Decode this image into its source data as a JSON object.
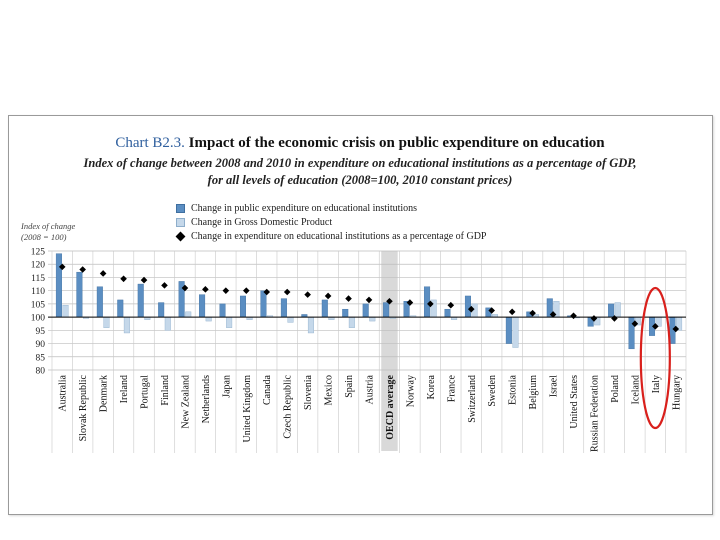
{
  "header": {
    "chart_number": "Chart B2.3.",
    "title": "Impact of the economic crisis on public expenditure on education",
    "subtitle_line1": "Index of change between 2008 and 2010 in expenditure on educational institutions as a percentage of GDP,",
    "subtitle_line2": "for all levels of education (2008=100, 2010 constant prices)"
  },
  "legend": {
    "dark": "Change in public expenditure on educational institutions",
    "light": "Change in Gross Domestic Product",
    "diamond": "Change in expenditure on educational institutions as a percentage of GDP"
  },
  "yaxis_unit": {
    "line1": "Index of change",
    "line2": "(2008 = 100)"
  },
  "colors": {
    "dark_bar": "#5b8ec2",
    "light_bar": "#c5d8ea",
    "diamond": "#000000",
    "highlight_band": "#d9d9d9",
    "highlight_circle": "#d9201c"
  },
  "chart_data": {
    "type": "bar",
    "ylim": [
      80,
      125
    ],
    "yticks": [
      80,
      85,
      90,
      95,
      100,
      105,
      110,
      115,
      120,
      125
    ],
    "baseline": 100,
    "highlighted_category": "OECD average",
    "circled_category": "Italy",
    "categories": [
      "Australia",
      "Slovak Republic",
      "Denmark",
      "Ireland",
      "Portugal",
      "Finland",
      "New Zealand",
      "Netherlands",
      "Japan",
      "United Kingdom",
      "Canada",
      "Czech Republic",
      "Slovenia",
      "Mexico",
      "Spain",
      "Austria",
      "OECD average",
      "Norway",
      "Korea",
      "France",
      "Switzerland",
      "Sweden",
      "Estonia",
      "Belgium",
      "Israel",
      "United States",
      "Russian Federation",
      "Poland",
      "Iceland",
      "Italy",
      "Hungary"
    ],
    "series": [
      {
        "name": "Change in public expenditure on educational institutions",
        "style": "dark",
        "values": [
          124,
          117,
          111.5,
          106.5,
          112.5,
          105.5,
          113.5,
          108.5,
          105,
          108,
          110,
          107,
          101,
          106.5,
          103,
          105,
          105.5,
          106,
          111.5,
          103,
          108,
          103.5,
          90,
          102,
          107,
          100.5,
          96.5,
          105,
          88,
          93,
          90
        ]
      },
      {
        "name": "Change in Gross Domestic Product",
        "style": "light",
        "values": [
          104.5,
          99.5,
          96,
          94,
          99,
          95,
          102,
          98.5,
          96,
          99,
          100.5,
          98,
          94,
          99,
          96,
          98.5,
          99.5,
          100.5,
          106.5,
          99,
          105,
          101,
          88.5,
          101,
          106,
          100,
          97,
          105.5,
          97,
          96.5,
          95
        ]
      },
      {
        "name": "Change in expenditure on educational institutions as a percentage of GDP",
        "style": "diamond",
        "values": [
          119,
          118,
          116.5,
          114.5,
          114,
          112,
          111,
          110.5,
          110,
          110,
          109.5,
          109.5,
          108.5,
          108,
          107,
          106.5,
          106,
          105.5,
          105,
          104.5,
          103,
          102.5,
          102,
          101.5,
          101,
          100.5,
          99.5,
          99.5,
          97.5,
          96.5,
          95.5
        ]
      }
    ]
  }
}
